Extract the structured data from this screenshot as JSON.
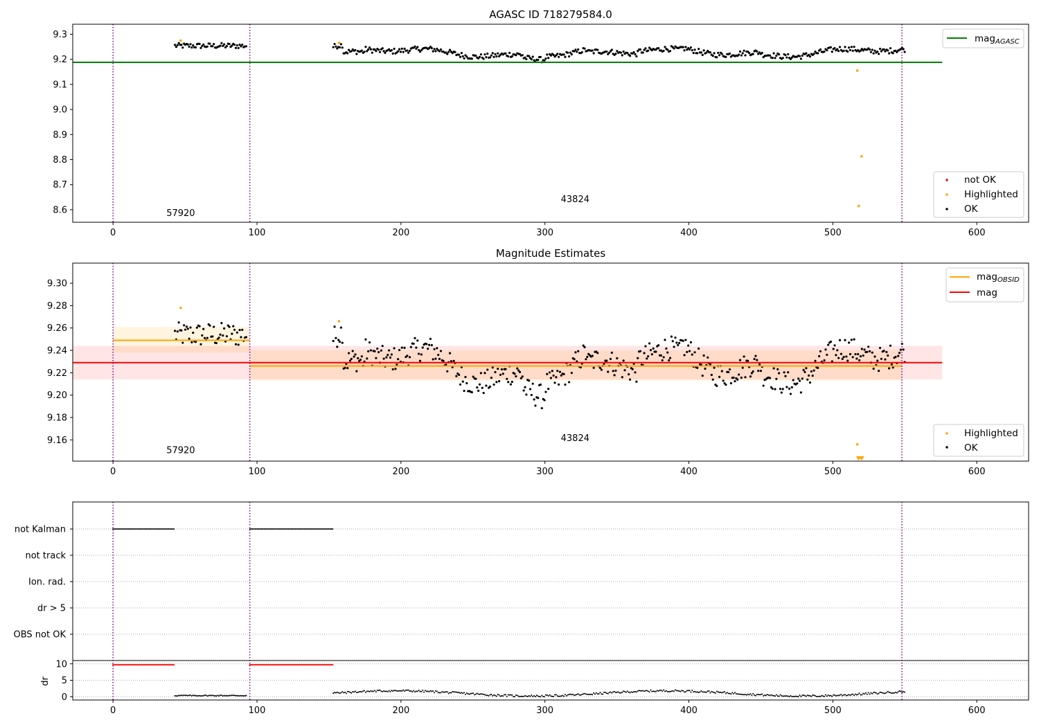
{
  "chart_data": [
    {
      "type": "scatter",
      "title": "AGASC ID 718279584.0",
      "xlim": [
        -28,
        636
      ],
      "ylim": [
        8.55,
        9.34
      ],
      "x_ticks": [
        "0",
        "100",
        "200",
        "300",
        "400",
        "500",
        "600"
      ],
      "y_ticks": [
        "8.6",
        "8.7",
        "8.8",
        "8.9",
        "9.0",
        "9.1",
        "9.2",
        "9.3"
      ],
      "obsid_boundaries": [
        0,
        95,
        548
      ],
      "obsid_labels": [
        {
          "text": "57920",
          "x": 47,
          "y": 8.575
        },
        {
          "text": "43824",
          "x": 321,
          "y": 8.63
        }
      ],
      "lines": [
        {
          "name": "mag_AGASC",
          "label_main": "mag",
          "label_sub": "AGASC",
          "value": 9.188,
          "x_range": [
            -28,
            576
          ],
          "color": "#008000"
        }
      ],
      "legend_lines": [
        {
          "label_main": "mag",
          "label_sub": "AGASC",
          "color": "#008000"
        }
      ],
      "legend_points": [
        {
          "label": "not OK",
          "color": "#ff0000"
        },
        {
          "label": "Highlighted",
          "color": "#ffa500"
        },
        {
          "label": "OK",
          "color": "#000000"
        }
      ],
      "highlighted_points": [
        [
          47,
          9.275
        ],
        [
          157,
          9.266
        ],
        [
          517,
          9.155
        ],
        [
          520,
          8.813
        ],
        [
          518,
          8.615
        ]
      ]
    },
    {
      "type": "scatter",
      "title": "Magnitude Estimates",
      "xlim": [
        -28,
        636
      ],
      "ylim": [
        9.141,
        9.318
      ],
      "x_ticks": [
        "0",
        "100",
        "200",
        "300",
        "400",
        "500",
        "600"
      ],
      "y_ticks": [
        "9.16",
        "9.18",
        "9.20",
        "9.22",
        "9.24",
        "9.26",
        "9.28",
        "9.30"
      ],
      "obsid_boundaries": [
        0,
        95,
        548
      ],
      "obsid_labels": [
        {
          "text": "57920",
          "x": 47,
          "y": 9.148
        },
        {
          "text": "43824",
          "x": 321,
          "y": 9.159
        }
      ],
      "lines": [
        {
          "name": "mag_OBSID_57920",
          "value": 9.249,
          "x_range": [
            0,
            95
          ],
          "band": [
            9.238,
            9.261
          ],
          "color": "#ffa500"
        },
        {
          "name": "mag_OBSID_43824",
          "value": 9.226,
          "x_range": [
            95,
            548
          ],
          "band": [
            9.213,
            9.24
          ],
          "color": "#ffa500"
        },
        {
          "name": "mag",
          "value": 9.229,
          "x_range": [
            -28,
            576
          ],
          "band": [
            9.214,
            9.244
          ],
          "color": "#ff0000"
        }
      ],
      "legend_lines": [
        {
          "label_main": "mag",
          "label_sub": "OBSID",
          "color": "#ffa500"
        },
        {
          "label_main": "mag",
          "label_sub": "",
          "color": "#ff0000"
        }
      ],
      "legend_points": [
        {
          "label": "Highlighted",
          "color": "#ffa500"
        },
        {
          "label": "OK",
          "color": "#000000"
        }
      ],
      "highlighted_points": [
        [
          47,
          9.278
        ],
        [
          157,
          9.266
        ],
        [
          517,
          9.156
        ]
      ],
      "low_markers": [
        [
          518,
          9.1425
        ],
        [
          520,
          9.1425
        ]
      ]
    },
    {
      "type": "scatter",
      "xlim": [
        -28,
        636
      ],
      "x_ticks": [
        "0",
        "100",
        "200",
        "300",
        "400",
        "500",
        "600"
      ],
      "flag_categories": [
        "not Kalman",
        "not track",
        "Ion. rad.",
        "dr > 5",
        "OBS not OK"
      ],
      "flag_segments": [
        {
          "flag": "not Kalman",
          "x": [
            0,
            43
          ]
        },
        {
          "flag": "not Kalman",
          "x": [
            95,
            153
          ]
        }
      ],
      "dr_ylabel": "dr",
      "dr_ylim": [
        -1,
        11
      ],
      "dr_ticks": [
        "0",
        "5",
        "10"
      ],
      "dr_red_segments": [
        [
          0,
          43
        ],
        [
          95,
          153
        ]
      ],
      "dr_red_value": 9.7,
      "obsid_boundaries": [
        0,
        95,
        548
      ]
    }
  ],
  "colors": {
    "ok": "#000000",
    "highlighted": "#ffa500",
    "not_ok": "#ff0000",
    "agasc": "#008000",
    "boundary": "#800080",
    "band_orange": "#ffa500",
    "band_red": "#ff0000"
  }
}
